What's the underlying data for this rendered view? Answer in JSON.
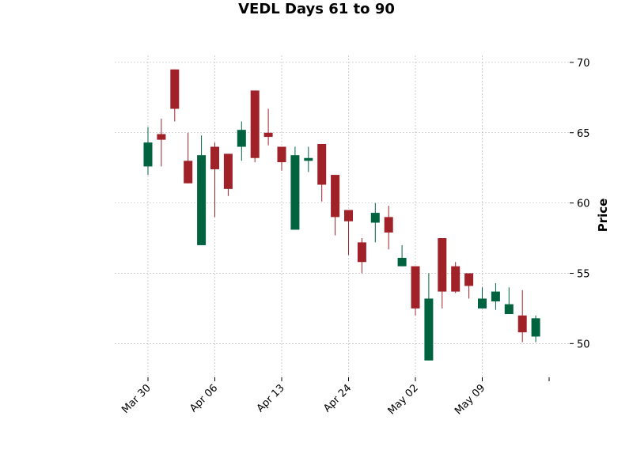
{
  "chart_data": {
    "type": "candlestick",
    "title": "VEDL Days 61 to 90",
    "ylabel": "Price",
    "xlabel": "",
    "ylim": [
      47.6,
      70.5
    ],
    "grid": true,
    "colors": {
      "up": "#006340",
      "down": "#a02128",
      "grid": "#b0b0b0"
    },
    "x_tick_labels": [
      {
        "index": 0,
        "label": "Mar 30"
      },
      {
        "index": 5,
        "label": "Apr 06"
      },
      {
        "index": 10,
        "label": "Apr 13"
      },
      {
        "index": 15,
        "label": "Apr 24"
      },
      {
        "index": 20,
        "label": "May 02"
      },
      {
        "index": 25,
        "label": "May 09"
      },
      {
        "index": 30,
        "label": ""
      }
    ],
    "y_ticks": [
      50,
      55,
      60,
      65,
      70
    ],
    "candles": [
      {
        "open": 62.6,
        "high": 65.4,
        "low": 62.0,
        "close": 64.3
      },
      {
        "open": 64.9,
        "high": 66.0,
        "low": 62.6,
        "close": 64.5
      },
      {
        "open": 69.5,
        "high": 69.5,
        "low": 65.8,
        "close": 66.7
      },
      {
        "open": 63.0,
        "high": 65.0,
        "low": 61.4,
        "close": 61.4
      },
      {
        "open": 57.0,
        "high": 64.8,
        "low": 57.0,
        "close": 63.4
      },
      {
        "open": 64.0,
        "high": 64.3,
        "low": 59.0,
        "close": 62.4
      },
      {
        "open": 63.5,
        "high": 63.5,
        "low": 60.5,
        "close": 61.0
      },
      {
        "open": 64.0,
        "high": 65.8,
        "low": 63.0,
        "close": 65.2
      },
      {
        "open": 68.0,
        "high": 68.0,
        "low": 62.9,
        "close": 63.2
      },
      {
        "open": 65.0,
        "high": 66.7,
        "low": 64.1,
        "close": 64.7
      },
      {
        "open": 64.0,
        "high": 64.0,
        "low": 62.3,
        "close": 62.9
      },
      {
        "open": 58.1,
        "high": 64.0,
        "low": 58.1,
        "close": 63.4
      },
      {
        "open": 63.0,
        "high": 64.0,
        "low": 62.2,
        "close": 63.2
      },
      {
        "open": 64.2,
        "high": 64.2,
        "low": 60.1,
        "close": 61.3
      },
      {
        "open": 62.0,
        "high": 62.0,
        "low": 57.7,
        "close": 59.0
      },
      {
        "open": 59.5,
        "high": 59.5,
        "low": 56.3,
        "close": 58.7
      },
      {
        "open": 57.2,
        "high": 57.5,
        "low": 55.0,
        "close": 55.8
      },
      {
        "open": 58.6,
        "high": 60.0,
        "low": 57.2,
        "close": 59.3
      },
      {
        "open": 59.0,
        "high": 59.8,
        "low": 56.7,
        "close": 57.9
      },
      {
        "open": 55.5,
        "high": 57.0,
        "low": 55.5,
        "close": 56.1
      },
      {
        "open": 55.5,
        "high": 55.5,
        "low": 52.0,
        "close": 52.5
      },
      {
        "open": 48.8,
        "high": 55.0,
        "low": 48.8,
        "close": 53.2
      },
      {
        "open": 57.5,
        "high": 57.5,
        "low": 52.5,
        "close": 53.7
      },
      {
        "open": 55.5,
        "high": 55.8,
        "low": 53.6,
        "close": 53.7
      },
      {
        "open": 55.0,
        "high": 55.0,
        "low": 53.2,
        "close": 54.1
      },
      {
        "open": 52.5,
        "high": 54.0,
        "low": 52.5,
        "close": 53.2
      },
      {
        "open": 53.0,
        "high": 54.3,
        "low": 52.4,
        "close": 53.7
      },
      {
        "open": 52.1,
        "high": 54.0,
        "low": 52.1,
        "close": 52.8
      },
      {
        "open": 52.0,
        "high": 53.8,
        "low": 50.1,
        "close": 50.8
      },
      {
        "open": 50.5,
        "high": 52.0,
        "low": 50.1,
        "close": 51.8
      }
    ]
  }
}
